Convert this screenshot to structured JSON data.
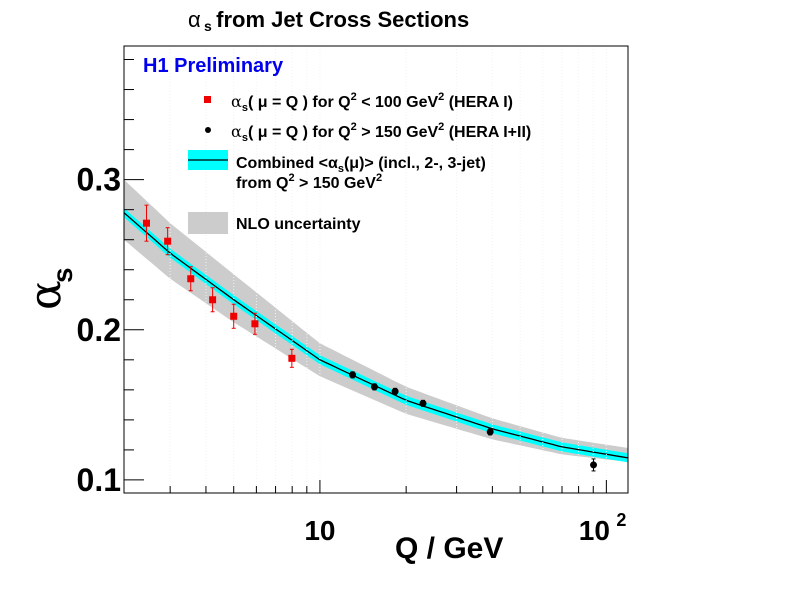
{
  "chart_data": {
    "type": "scatter",
    "title": "αs from Jet Cross Sections",
    "title_parts": {
      "symbol": "α",
      "sub": "s",
      "rest": " from Jet Cross Sections"
    },
    "xlabel": "Q / GeV",
    "ylabel": {
      "symbol": "α",
      "sub": "s"
    },
    "xscale": "log",
    "xlim": [
      2.07,
      119
    ],
    "ylim": [
      0.0913,
      0.389
    ],
    "xticks": [
      {
        "value": 10,
        "label": "10",
        "sup": ""
      },
      {
        "value": 100,
        "label": "10",
        "sup": "2"
      }
    ],
    "yticks": [
      {
        "value": 0.1,
        "label": "0.1"
      },
      {
        "value": 0.2,
        "label": "0.2"
      },
      {
        "value": 0.3,
        "label": "0.3"
      }
    ],
    "grid": false,
    "annotation": {
      "text": "H1 Preliminary",
      "color": "#0000ee",
      "placement": "top-left"
    },
    "legend": {
      "placement": "top-right",
      "entries": [
        {
          "key": "hera1",
          "marker": "red-square",
          "parts": [
            "α",
            "s",
            "( μ = Q ) for Q",
            "2",
            " < 100 GeV",
            "2",
            " (HERA I)"
          ]
        },
        {
          "key": "hera12",
          "marker": "black-dot",
          "parts": [
            "α",
            "s",
            "( μ = Q ) for Q",
            "2",
            " > 150 GeV",
            "2",
            " (HERA I+II)"
          ]
        },
        {
          "key": "combined",
          "marker": "cyan-band",
          "line1": [
            "Combined <α",
            "s",
            "(μ)> (incl., 2-, 3-jet)"
          ],
          "line2": [
            "from Q",
            "2",
            " > 150 GeV",
            "2"
          ]
        },
        {
          "key": "nlo",
          "marker": "gray-band",
          "text": "NLO uncertainty"
        }
      ]
    },
    "series": [
      {
        "name": "αs(μ=Q) for Q² < 100 GeV² (HERA I)",
        "color": "#ee0000",
        "marker": "square",
        "points": [
          {
            "x": 2.48,
            "y": 0.271,
            "err": 0.012
          },
          {
            "x": 2.94,
            "y": 0.259,
            "err": 0.009
          },
          {
            "x": 3.54,
            "y": 0.234,
            "err": 0.008
          },
          {
            "x": 4.22,
            "y": 0.22,
            "err": 0.008
          },
          {
            "x": 5.0,
            "y": 0.209,
            "err": 0.008
          },
          {
            "x": 5.93,
            "y": 0.204,
            "err": 0.007
          },
          {
            "x": 7.98,
            "y": 0.181,
            "err": 0.006
          }
        ]
      },
      {
        "name": "αs(μ=Q) for Q² > 150 GeV² (HERA I+II)",
        "color": "#000000",
        "marker": "circle",
        "points": [
          {
            "x": 13.0,
            "y": 0.17,
            "err": 0.002
          },
          {
            "x": 15.5,
            "y": 0.162,
            "err": 0.002
          },
          {
            "x": 18.3,
            "y": 0.159,
            "err": 0.002
          },
          {
            "x": 22.9,
            "y": 0.151,
            "err": 0.002
          },
          {
            "x": 39.3,
            "y": 0.132,
            "err": 0.002
          },
          {
            "x": 90.2,
            "y": 0.11,
            "err": 0.004
          }
        ]
      }
    ],
    "curves": {
      "combined_central": {
        "x": [
          2.07,
          3,
          5,
          10,
          20,
          40,
          70,
          119
        ],
        "y": [
          0.278,
          0.251,
          0.22,
          0.18,
          0.153,
          0.134,
          0.122,
          0.1147
        ]
      },
      "combined_band_halfwidth": 0.003,
      "nlo_band": {
        "x": [
          2.07,
          3,
          5,
          10,
          20,
          40,
          70,
          119
        ],
        "upper": [
          0.3,
          0.271,
          0.237,
          0.191,
          0.162,
          0.141,
          0.128,
          0.1213
        ],
        "lower": [
          0.26,
          0.234,
          0.205,
          0.169,
          0.144,
          0.127,
          0.117,
          0.112
        ]
      }
    },
    "colors": {
      "cyan": "#00ffff",
      "nlo": "#cccccc",
      "red": "#ee0000",
      "black": "#000000",
      "blue": "#0000ee"
    }
  }
}
